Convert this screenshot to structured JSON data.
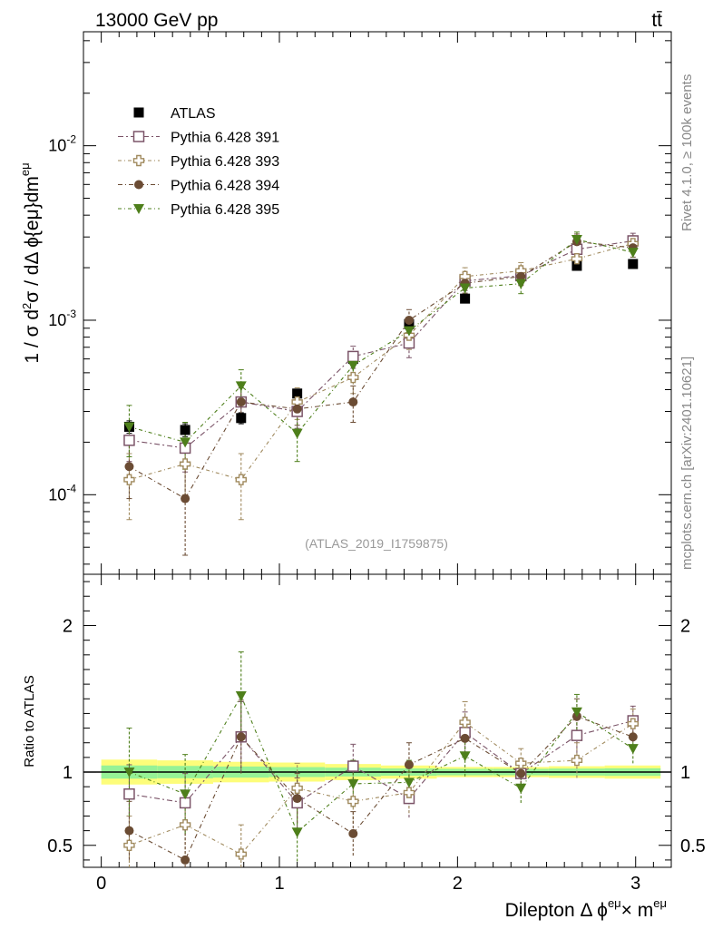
{
  "header": {
    "energy_label": "13000 GeV pp",
    "process_label": "tt̄"
  },
  "side_labels": {
    "rivet": "Rivet 4.1.0, ≥ 100k events",
    "source": "mcplots.cern.ch [arXiv:2401.10621]"
  },
  "watermark": "(ATLAS_2019_I1759875)",
  "chart_data": [
    {
      "type": "scatter",
      "panel": "main",
      "yscale": "log",
      "ylabel": "1 / σ  d²σ / dΔ ϕ{eμ}dm^eμ",
      "xlabel": "",
      "xlim": [
        -0.1,
        3.2
      ],
      "ylim": [
        3.5e-05,
        0.045
      ],
      "y_tick_labels": [
        "10^-4",
        "10^-3",
        "10^-2"
      ],
      "x": [
        0.157,
        0.471,
        0.785,
        1.1,
        1.414,
        1.728,
        2.042,
        2.356,
        2.67,
        2.985
      ],
      "legend_placement": "top-left",
      "series": [
        {
          "name": "ATLAS",
          "marker": "square-filled",
          "color": "#000000",
          "values": [
            0.000245,
            0.000235,
            0.000275,
            0.00038,
            0.0006,
            0.00095,
            0.00133,
            0.00183,
            0.00205,
            0.0021
          ],
          "errors": [
            2e-05,
            2e-05,
            2e-05,
            2e-05,
            3e-05,
            4e-05,
            5e-05,
            6e-05,
            7e-05,
            7e-05
          ]
        },
        {
          "name": "Pythia 6.428 391",
          "marker": "square-open",
          "color": "#7b5468",
          "values": [
            0.000205,
            0.000185,
            0.00034,
            0.0003,
            0.00062,
            0.00074,
            0.00168,
            0.0018,
            0.00255,
            0.00285
          ],
          "errors": [
            5e-05,
            5e-05,
            7e-05,
            6e-05,
            9e-05,
            0.00013,
            0.0002,
            0.0002,
            0.0003,
            0.0003
          ]
        },
        {
          "name": "Pythia 6.428 393",
          "marker": "cross-open",
          "color": "#a08a5e",
          "values": [
            0.000122,
            0.00015,
            0.000122,
            0.00034,
            0.00047,
            0.00082,
            0.00178,
            0.00192,
            0.00225,
            0.00275
          ],
          "errors": [
            5e-05,
            5e-05,
            5e-05,
            7e-05,
            9e-05,
            0.00014,
            0.00022,
            0.00022,
            0.0003,
            0.0003
          ]
        },
        {
          "name": "Pythia 6.428 394",
          "marker": "circle-filled",
          "color": "#6b4c34",
          "values": [
            0.000145,
            9.5e-05,
            0.00034,
            0.00031,
            0.00034,
            0.001,
            0.00163,
            0.00178,
            0.00282,
            0.0026
          ],
          "errors": [
            5e-05,
            5e-05,
            8e-05,
            6e-05,
            8e-05,
            0.00015,
            0.0002,
            0.0002,
            0.0003,
            0.0003
          ]
        },
        {
          "name": "Pythia 6.428 395",
          "marker": "triangle-down-filled",
          "color": "#4e7f1b",
          "values": [
            0.000245,
            0.0002,
            0.00042,
            0.000225,
            0.00055,
            0.00087,
            0.00153,
            0.00162,
            0.0029,
            0.00245
          ],
          "errors": [
            8e-05,
            6e-05,
            0.0001,
            7e-05,
            0.0001,
            0.00015,
            0.0002,
            0.0002,
            0.0003,
            0.0003
          ]
        }
      ]
    },
    {
      "type": "scatter",
      "panel": "ratio",
      "ylabel": "Ratio to ATLAS",
      "xlabel": "Dilepton Δ ϕ^eμ × m^eμ",
      "xlim": [
        -0.1,
        3.2
      ],
      "ylim": [
        0.35,
        2.35
      ],
      "y_tick_labels": [
        "0.5",
        "1",
        "2"
      ],
      "x_tick_labels": [
        "0",
        "1",
        "2",
        "3"
      ],
      "x": [
        0.157,
        0.471,
        0.785,
        1.1,
        1.414,
        1.728,
        2.042,
        2.356,
        2.67,
        2.985
      ],
      "reference_line": 1,
      "uncertainty_bands": {
        "edges": [
          0.0,
          0.314,
          0.628,
          0.942,
          1.256,
          1.57,
          1.884,
          2.198,
          2.512,
          2.826,
          3.14
        ],
        "yellow_halfwidth": [
          0.085,
          0.08,
          0.07,
          0.065,
          0.055,
          0.045,
          0.035,
          0.035,
          0.04,
          0.045
        ],
        "green_halfwidth": [
          0.045,
          0.042,
          0.038,
          0.034,
          0.03,
          0.025,
          0.022,
          0.022,
          0.024,
          0.026
        ],
        "yellow_color": "#fdfd7a",
        "green_color": "#96f296"
      },
      "series": [
        {
          "name": "Pythia 6.428 391",
          "marker": "square-open",
          "color": "#7b5468",
          "values": [
            0.85,
            0.79,
            1.24,
            0.79,
            1.04,
            0.82,
            1.27,
            0.99,
            1.25,
            1.35
          ],
          "errors": [
            0.2,
            0.2,
            0.24,
            0.17,
            0.15,
            0.13,
            0.14,
            0.1,
            0.12,
            0.1
          ]
        },
        {
          "name": "Pythia 6.428 393",
          "marker": "cross-open",
          "color": "#a08a5e",
          "values": [
            0.5,
            0.64,
            0.44,
            0.89,
            0.8,
            0.86,
            1.34,
            1.06,
            1.08,
            1.33
          ],
          "errors": [
            0.2,
            0.2,
            0.2,
            0.17,
            0.15,
            0.14,
            0.14,
            0.1,
            0.12,
            0.1
          ]
        },
        {
          "name": "Pythia 6.428 394",
          "marker": "circle-filled",
          "color": "#6b4c34",
          "values": [
            0.6,
            0.4,
            1.24,
            0.82,
            0.58,
            1.05,
            1.23,
            0.99,
            1.38,
            1.24
          ],
          "errors": [
            0.2,
            0.21,
            0.25,
            0.17,
            0.15,
            0.15,
            0.14,
            0.1,
            0.12,
            0.1
          ]
        },
        {
          "name": "Pythia 6.428 395",
          "marker": "triangle-down-filled",
          "color": "#4e7f1b",
          "values": [
            1.0,
            0.85,
            1.52,
            0.59,
            0.92,
            0.93,
            1.11,
            0.89,
            1.41,
            1.16
          ],
          "errors": [
            0.3,
            0.27,
            0.3,
            0.2,
            0.16,
            0.15,
            0.14,
            0.1,
            0.12,
            0.1
          ]
        }
      ]
    }
  ]
}
